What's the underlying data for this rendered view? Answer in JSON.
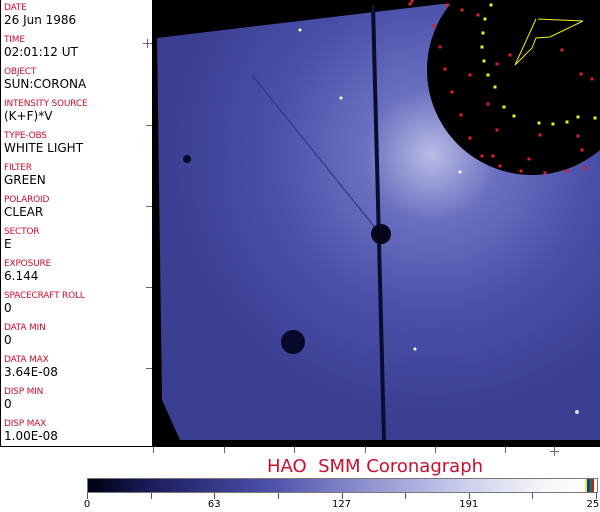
{
  "header_fields": [
    {
      "label": "DATE",
      "value": "26 Jun 1986"
    },
    {
      "label": "TIME",
      "value": "02:01:12 UT"
    },
    {
      "label": "OBJECT",
      "value": "SUN:CORONA"
    },
    {
      "label": "INTENSITY SOURCE",
      "value": "(K+F)*V"
    },
    {
      "label": "TYPE-OBS",
      "value": "WHITE LIGHT"
    },
    {
      "label": "FILTER",
      "value": "GREEN"
    },
    {
      "label": "POLAROID",
      "value": "CLEAR"
    },
    {
      "label": "SECTOR",
      "value": "E"
    },
    {
      "label": "EXPOSURE",
      "value": "6.144"
    },
    {
      "label": "SPACECRAFT ROLL",
      "value": "0"
    },
    {
      "label": "DATA MIN",
      "value": "0"
    },
    {
      "label": "DATA MAX",
      "value": "3.64E-08"
    },
    {
      "label": "DISP MIN",
      "value": "0"
    },
    {
      "label": "DISP MAX",
      "value": "1.00E-08"
    }
  ],
  "title": "HAO  SMM Coronagraph",
  "colorbar": {
    "tick_labels": [
      "0",
      "63",
      "127",
      "191",
      "255"
    ],
    "colors": {
      "low": "#000010",
      "mid": "#4a4fa8",
      "high": "#ffffff"
    }
  },
  "colors": {
    "label": "#c8102e",
    "image_blue": "#4a50a8",
    "marker_red": "#e0202a",
    "marker_yellow": "#f0f020"
  }
}
